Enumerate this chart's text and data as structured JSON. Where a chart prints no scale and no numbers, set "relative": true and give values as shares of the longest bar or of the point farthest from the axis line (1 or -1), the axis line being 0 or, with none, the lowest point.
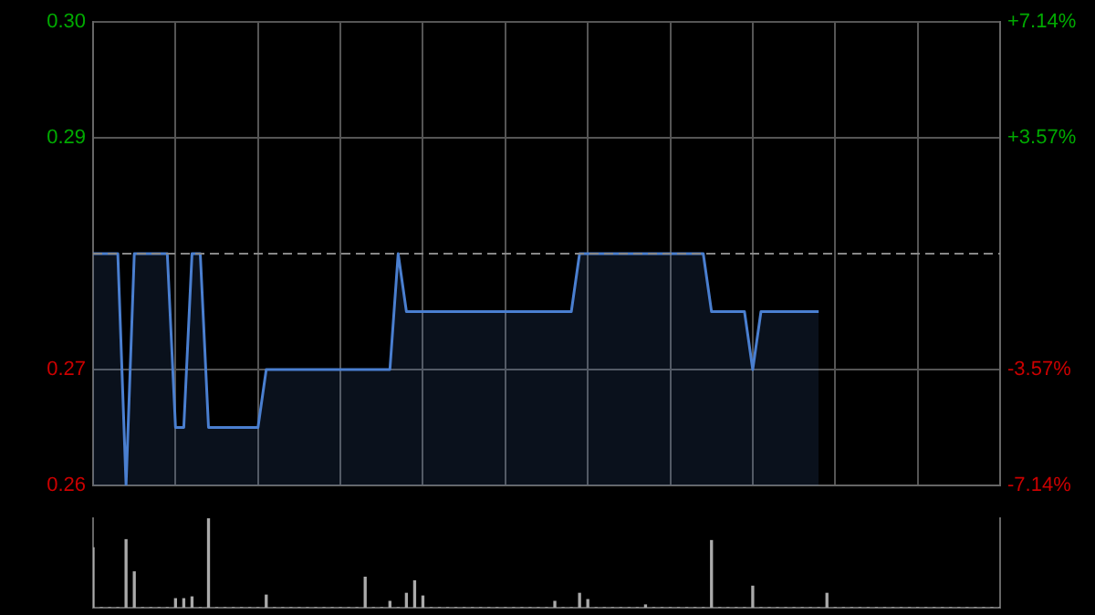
{
  "chart_data": [
    {
      "type": "area",
      "categories": [
        null,
        null,
        null,
        null,
        null,
        null,
        null,
        null,
        null,
        null,
        null,
        null,
        null,
        null,
        null,
        null,
        null,
        null,
        null,
        null,
        null,
        null,
        null,
        null,
        null,
        null,
        null,
        null,
        null,
        null,
        null,
        null,
        null,
        null,
        null,
        null,
        null,
        null,
        null,
        null,
        null,
        null,
        null,
        null,
        null,
        null,
        null,
        null,
        null,
        null,
        null,
        null,
        null,
        null,
        null,
        null,
        null,
        null,
        null,
        null,
        null,
        null,
        null,
        null,
        null,
        null,
        null,
        null,
        null,
        null,
        null,
        null,
        null,
        null,
        null,
        null,
        null,
        null,
        null,
        null,
        null,
        null,
        null,
        null,
        null,
        null,
        null,
        null,
        null,
        null,
        null,
        null,
        null,
        null,
        null,
        null,
        null,
        null,
        null,
        null,
        null,
        null,
        null,
        null,
        null,
        null,
        null,
        null,
        null,
        null,
        null
      ],
      "series": [
        {
          "color": "#4a7fd0",
          "values": [
            0.28,
            0.28,
            0.28,
            0.28,
            0.26,
            0.28,
            0.28,
            0.28,
            0.28,
            0.28,
            0.265,
            0.265,
            0.28,
            0.28,
            0.265,
            0.265,
            0.265,
            0.265,
            0.265,
            0.265,
            0.265,
            0.27,
            0.27,
            0.27,
            0.27,
            0.27,
            0.27,
            0.27,
            0.27,
            0.27,
            0.27,
            0.27,
            0.27,
            0.27,
            0.27,
            0.27,
            0.27,
            0.28,
            0.275,
            0.275,
            0.275,
            0.275,
            0.275,
            0.275,
            0.275,
            0.275,
            0.275,
            0.275,
            0.275,
            0.275,
            0.275,
            0.275,
            0.275,
            0.275,
            0.275,
            0.275,
            0.275,
            0.275,
            0.275,
            0.28,
            0.28,
            0.28,
            0.28,
            0.28,
            0.28,
            0.28,
            0.28,
            0.28,
            0.28,
            0.28,
            0.28,
            0.28,
            0.28,
            0.28,
            0.28,
            0.275,
            0.275,
            0.275,
            0.275,
            0.275,
            0.27,
            0.275,
            0.275,
            0.275,
            0.275,
            0.275,
            0.275,
            0.275,
            0.275,
            null,
            null,
            null,
            null,
            null,
            null,
            null,
            null,
            null,
            null,
            null,
            null,
            null,
            null,
            null,
            null,
            null,
            null,
            null,
            null,
            null,
            null
          ]
        }
      ],
      "ylim": [
        0.26,
        0.3
      ],
      "yticks": [
        {
          "value": 0.26,
          "label": "0.26"
        },
        {
          "value": 0.27,
          "label": "0.27"
        },
        {
          "value": 0.29,
          "label": "0.29"
        },
        {
          "value": 0.3,
          "label": "0.30"
        }
      ],
      "y2lim": [
        -7.14,
        7.14
      ],
      "y2ticks": [
        {
          "value": -7.14,
          "label": "-7.14%"
        },
        {
          "value": -3.57,
          "label": "-3.57%"
        },
        {
          "value": 3.57,
          "label": "+3.57%"
        },
        {
          "value": 7.14,
          "label": "+7.14%"
        }
      ],
      "ref_lines": [
        {
          "axis": "y",
          "value": 0.28,
          "color": "#888888",
          "line_style": "dashed"
        }
      ],
      "grid": true
    },
    {
      "type": "bar",
      "relative": true,
      "categories": [
        null,
        null,
        null,
        null,
        null,
        null,
        null,
        null,
        null,
        null,
        null,
        null,
        null,
        null,
        null,
        null,
        null,
        null,
        null,
        null,
        null,
        null,
        null,
        null,
        null,
        null,
        null,
        null,
        null,
        null,
        null,
        null,
        null,
        null,
        null,
        null,
        null,
        null,
        null,
        null,
        null,
        null,
        null,
        null,
        null,
        null,
        null,
        null,
        null,
        null,
        null,
        null,
        null,
        null,
        null,
        null,
        null,
        null,
        null,
        null,
        null,
        null,
        null,
        null,
        null,
        null,
        null,
        null,
        null,
        null,
        null,
        null,
        null,
        null,
        null,
        null,
        null,
        null,
        null,
        null,
        null,
        null,
        null,
        null,
        null,
        null,
        null,
        null,
        null,
        null,
        null,
        null,
        null,
        null,
        null,
        null,
        null,
        null,
        null,
        null,
        null,
        null,
        null,
        null,
        null,
        null,
        null,
        null,
        null,
        null,
        null
      ],
      "series": [
        {
          "color": "#aaaaaa",
          "values": [
            0.67,
            0,
            0,
            0,
            0.76,
            0.4,
            0,
            0,
            0,
            0,
            0.1,
            0.1,
            0.12,
            0,
            1,
            0,
            0,
            0,
            0,
            0,
            0,
            0.14,
            0,
            0,
            0,
            0,
            0,
            0,
            0,
            0,
            0,
            0,
            0,
            0.34,
            0,
            0,
            0.07,
            0,
            0.16,
            0.3,
            0.13,
            0,
            0,
            0,
            0,
            0,
            0,
            0,
            0,
            0,
            0,
            0,
            0,
            0,
            0,
            0,
            0.07,
            0,
            0,
            0.16,
            0.09,
            0,
            0,
            0,
            0,
            0,
            0,
            0.03,
            0,
            0,
            0,
            0,
            0,
            0,
            0,
            0.75,
            0,
            0,
            0,
            0,
            0.24,
            0,
            0,
            0,
            0,
            0,
            0,
            0,
            0,
            0.16,
            0,
            0,
            0,
            0,
            0,
            0,
            0,
            0,
            0,
            0,
            0,
            0,
            0,
            0,
            0,
            0,
            0,
            0,
            0,
            0,
            0
          ]
        }
      ],
      "tick_labels": false
    }
  ]
}
